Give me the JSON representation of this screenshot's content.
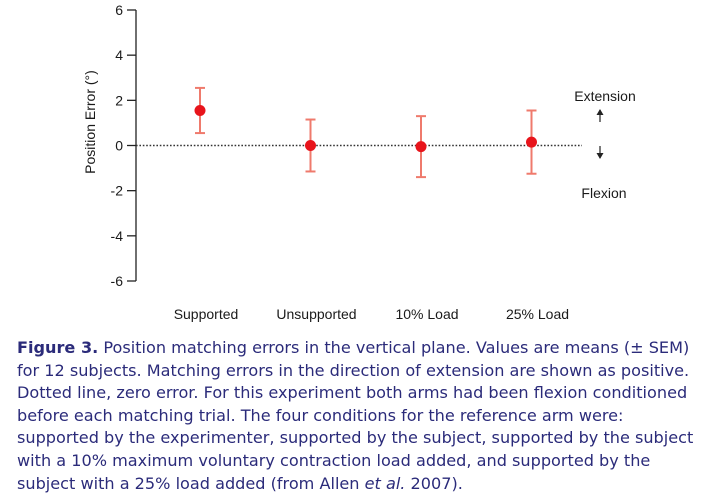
{
  "chart_data": {
    "type": "scatter",
    "categories": [
      "Supported",
      "Unsupported",
      "10% Load",
      "25% Load"
    ],
    "series": [
      {
        "values": [
          1.55,
          0.0,
          -0.05,
          0.15
        ],
        "sem": [
          1.0,
          1.15,
          1.35,
          1.4
        ]
      }
    ],
    "ylabel": "Position Error (°)",
    "xlabel": "",
    "ylim": [
      -6,
      6
    ],
    "yticks": [
      -6,
      -4,
      -2,
      0,
      2,
      4,
      6
    ],
    "reference_line": 0,
    "annotations": {
      "up": "Extension",
      "down": "Flexion"
    },
    "grid": false,
    "marker_color": "#e8141b",
    "errorbar_color": "#ef7a6c"
  },
  "caption": {
    "label": "Figure 3.",
    "text_1": "Position matching errors in the vertical plane. Values are means (± SEM) for 12 subjects. Matching errors in the direction of extension are shown as positive. Dotted line, zero error. For this experiment both arms had been flexion conditioned before each matching trial. The four conditions for  the reference arm were: supported by the experimenter, supported by the subject, supported by the subject with a 10% maximum voluntary contraction load added, and supported by the subject with a 25% load added (from Allen ",
    "italic": "et al.",
    "text_2": " 2007).",
    "color": "#2b2b7a"
  }
}
